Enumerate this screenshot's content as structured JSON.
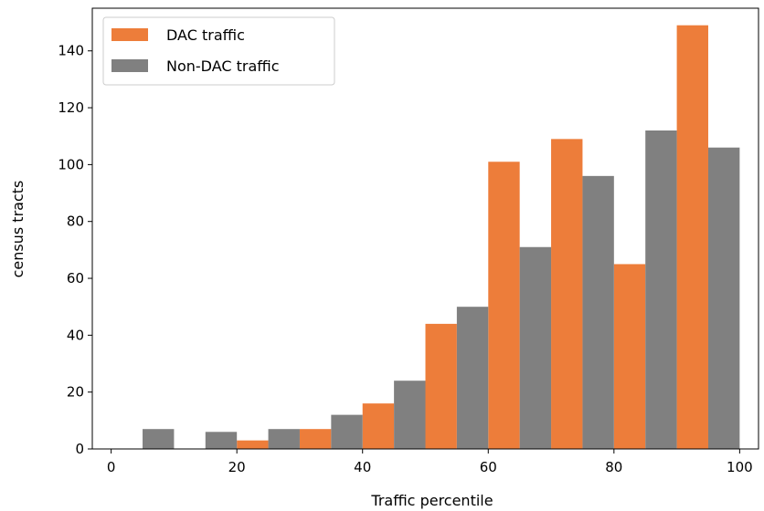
{
  "chart_data": {
    "type": "bar",
    "title": "",
    "xlabel": "Traffic percentile",
    "ylabel": "census tracts",
    "xlim": [
      -3,
      103
    ],
    "ylim": [
      0,
      155
    ],
    "xticks": [
      0,
      20,
      40,
      60,
      80,
      100
    ],
    "yticks": [
      0,
      20,
      40,
      60,
      80,
      100,
      120,
      140
    ],
    "bin_edges": [
      0,
      10,
      20,
      30,
      40,
      50,
      60,
      70,
      80,
      90,
      100
    ],
    "series": [
      {
        "name": "DAC traffic",
        "color": "#ed7d3a",
        "values": [
          0,
          0,
          3,
          7,
          16,
          44,
          101,
          109,
          65,
          149
        ]
      },
      {
        "name": "Non-DAC traffic",
        "color": "#808080",
        "values": [
          7,
          6,
          7,
          12,
          24,
          50,
          71,
          96,
          112,
          106
        ]
      }
    ],
    "grid": false,
    "legend_position": "top-left"
  }
}
